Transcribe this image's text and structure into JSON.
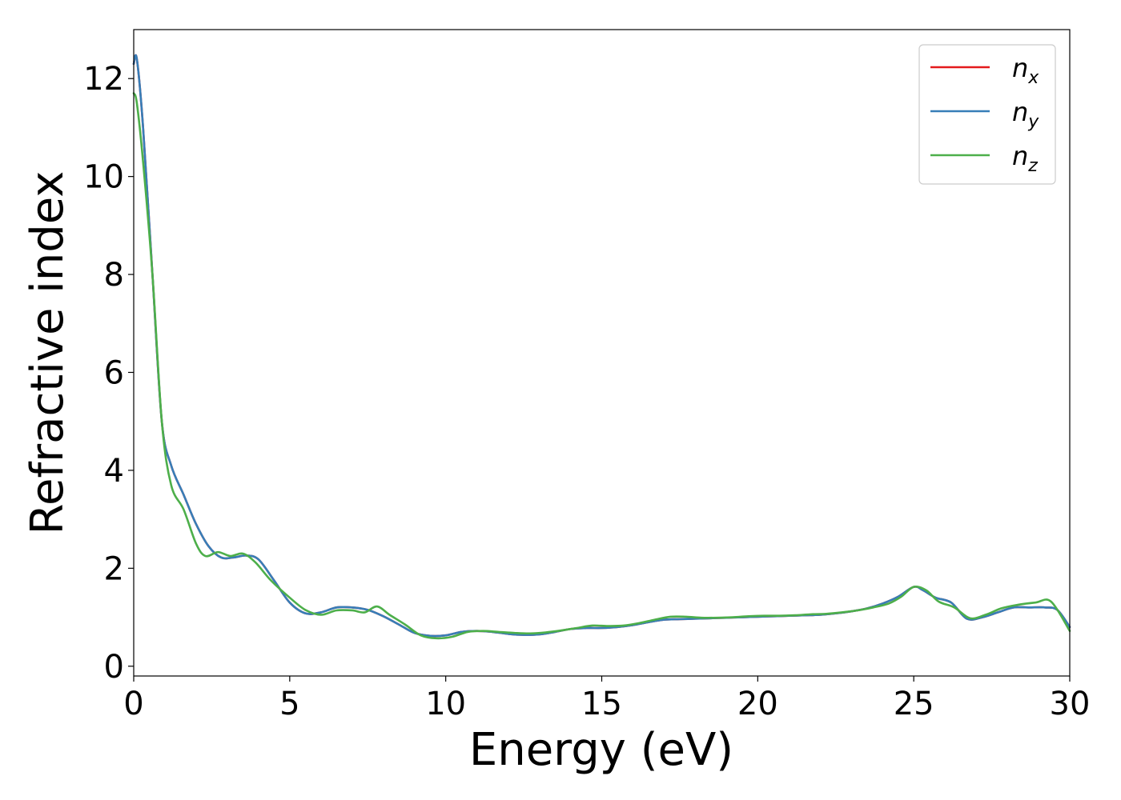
{
  "chart_data": {
    "type": "line",
    "xlabel": "Energy (eV)",
    "ylabel": "Refractive index",
    "xlim": [
      0,
      30
    ],
    "ylim": [
      -0.2,
      13.0
    ],
    "xticks": [
      0,
      5,
      10,
      15,
      20,
      25,
      30
    ],
    "yticks": [
      0,
      2,
      4,
      6,
      8,
      10,
      12
    ],
    "grid": false,
    "legend_position": "top-right",
    "series": [
      {
        "name": "n_x",
        "label_base": "n",
        "label_sub": "x",
        "color": "#e41a1c",
        "x": [
          0,
          0.1,
          0.3,
          0.6,
          0.9,
          1.2,
          1.6,
          2.0,
          2.4,
          2.8,
          3.2,
          3.6,
          4.0,
          4.5,
          5.0,
          5.5,
          6.0,
          6.5,
          7.0,
          7.5,
          8.0,
          8.5,
          9.0,
          9.5,
          10.0,
          10.5,
          11.0,
          11.5,
          12.0,
          12.5,
          13.0,
          13.5,
          14.0,
          14.5,
          15.0,
          15.5,
          16.0,
          16.5,
          17.0,
          17.5,
          18.0,
          18.5,
          19.0,
          19.5,
          20.0,
          20.5,
          21.0,
          21.5,
          22.0,
          22.5,
          23.0,
          23.5,
          24.0,
          24.5,
          25.0,
          25.3,
          25.7,
          26.2,
          26.7,
          27.2,
          27.7,
          28.2,
          28.7,
          29.2,
          29.6,
          30.0
        ],
        "values": [
          12.3,
          12.4,
          11.0,
          8.0,
          5.0,
          4.1,
          3.5,
          2.9,
          2.45,
          2.22,
          2.22,
          2.26,
          2.18,
          1.75,
          1.3,
          1.08,
          1.1,
          1.2,
          1.2,
          1.15,
          1.02,
          0.85,
          0.68,
          0.62,
          0.63,
          0.7,
          0.72,
          0.7,
          0.66,
          0.64,
          0.65,
          0.7,
          0.76,
          0.78,
          0.78,
          0.8,
          0.84,
          0.9,
          0.95,
          0.96,
          0.97,
          0.98,
          0.99,
          1.0,
          1.01,
          1.02,
          1.03,
          1.04,
          1.05,
          1.08,
          1.12,
          1.18,
          1.28,
          1.42,
          1.62,
          1.55,
          1.4,
          1.3,
          0.97,
          1.0,
          1.1,
          1.2,
          1.2,
          1.2,
          1.15,
          0.8
        ]
      },
      {
        "name": "n_y",
        "label_base": "n",
        "label_sub": "y",
        "color": "#377eb8",
        "x": [
          0,
          0.1,
          0.3,
          0.6,
          0.9,
          1.2,
          1.6,
          2.0,
          2.4,
          2.8,
          3.2,
          3.6,
          4.0,
          4.5,
          5.0,
          5.5,
          6.0,
          6.5,
          7.0,
          7.5,
          8.0,
          8.5,
          9.0,
          9.5,
          10.0,
          10.5,
          11.0,
          11.5,
          12.0,
          12.5,
          13.0,
          13.5,
          14.0,
          14.5,
          15.0,
          15.5,
          16.0,
          16.5,
          17.0,
          17.5,
          18.0,
          18.5,
          19.0,
          19.5,
          20.0,
          20.5,
          21.0,
          21.5,
          22.0,
          22.5,
          23.0,
          23.5,
          24.0,
          24.5,
          25.0,
          25.3,
          25.7,
          26.2,
          26.7,
          27.2,
          27.7,
          28.2,
          28.7,
          29.2,
          29.6,
          30.0
        ],
        "values": [
          12.3,
          12.4,
          11.0,
          8.0,
          5.0,
          4.1,
          3.5,
          2.9,
          2.45,
          2.22,
          2.22,
          2.26,
          2.18,
          1.75,
          1.3,
          1.08,
          1.1,
          1.2,
          1.2,
          1.15,
          1.02,
          0.85,
          0.68,
          0.62,
          0.63,
          0.7,
          0.72,
          0.7,
          0.66,
          0.64,
          0.65,
          0.7,
          0.76,
          0.78,
          0.78,
          0.8,
          0.84,
          0.9,
          0.95,
          0.96,
          0.97,
          0.98,
          0.99,
          1.0,
          1.01,
          1.02,
          1.03,
          1.04,
          1.05,
          1.08,
          1.12,
          1.18,
          1.28,
          1.42,
          1.62,
          1.55,
          1.4,
          1.3,
          0.97,
          1.0,
          1.1,
          1.2,
          1.2,
          1.2,
          1.15,
          0.8
        ]
      },
      {
        "name": "n_z",
        "label_base": "n",
        "label_sub": "z",
        "color": "#4daf4a",
        "x": [
          0,
          0.1,
          0.3,
          0.6,
          0.9,
          1.2,
          1.6,
          2.0,
          2.3,
          2.7,
          3.1,
          3.5,
          3.9,
          4.4,
          5.0,
          5.5,
          6.0,
          6.5,
          7.0,
          7.4,
          7.8,
          8.2,
          8.7,
          9.2,
          9.7,
          10.2,
          10.7,
          11.2,
          11.7,
          12.2,
          12.7,
          13.2,
          13.7,
          14.2,
          14.7,
          15.2,
          15.7,
          16.2,
          16.7,
          17.2,
          17.7,
          18.2,
          18.7,
          19.2,
          19.7,
          20.2,
          20.7,
          21.2,
          21.7,
          22.2,
          22.7,
          23.2,
          23.7,
          24.2,
          24.6,
          25.0,
          25.4,
          25.8,
          26.3,
          26.8,
          27.3,
          27.8,
          28.3,
          28.9,
          29.4,
          30.0
        ],
        "values": [
          11.7,
          11.5,
          10.3,
          8.0,
          5.0,
          3.7,
          3.2,
          2.5,
          2.25,
          2.33,
          2.25,
          2.3,
          2.12,
          1.75,
          1.4,
          1.15,
          1.05,
          1.14,
          1.14,
          1.1,
          1.22,
          1.05,
          0.85,
          0.63,
          0.57,
          0.6,
          0.7,
          0.72,
          0.7,
          0.68,
          0.67,
          0.69,
          0.73,
          0.78,
          0.83,
          0.82,
          0.83,
          0.88,
          0.95,
          1.01,
          1.01,
          0.99,
          0.99,
          1.0,
          1.02,
          1.03,
          1.03,
          1.04,
          1.06,
          1.07,
          1.1,
          1.14,
          1.2,
          1.28,
          1.42,
          1.62,
          1.55,
          1.32,
          1.2,
          0.98,
          1.05,
          1.18,
          1.25,
          1.3,
          1.32,
          0.72
        ]
      }
    ]
  }
}
